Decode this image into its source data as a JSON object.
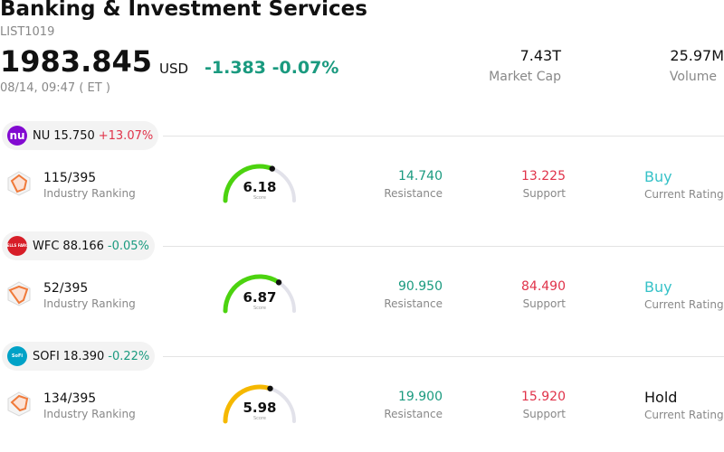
{
  "header": {
    "title": "Banking & Investment Services",
    "code": "LIST1019",
    "price": "1983.845",
    "currency": "USD",
    "change": "-1.383 -0.07%",
    "timestamp": "08/14, 09:47  ( ET )",
    "market_cap_value": "7.43T",
    "market_cap_label": "Market Cap",
    "volume_value": "25.97M",
    "volume_label": "Volume"
  },
  "stocks": [
    {
      "logo_text": "nu",
      "ticker": "NU",
      "price": "15.750",
      "change_pct": "+13.07%",
      "rank": "115/395",
      "rank_label": "Industry Ranking",
      "score": "6.18",
      "score_fraction": 0.618,
      "score_label": "Score",
      "resistance": "14.740",
      "resistance_label": "Resistance",
      "support": "13.225",
      "support_label": "Support",
      "rating": "Buy",
      "rating_label": "Current Rating"
    },
    {
      "logo_text": "WELLS FARGO",
      "ticker": "WFC",
      "price": "88.166",
      "change_pct": "-0.05%",
      "rank": "52/395",
      "rank_label": "Industry Ranking",
      "score": "6.87",
      "score_fraction": 0.687,
      "score_label": "Score",
      "resistance": "90.950",
      "resistance_label": "Resistance",
      "support": "84.490",
      "support_label": "Support",
      "rating": "Buy",
      "rating_label": "Current Rating"
    },
    {
      "logo_text": "SoFi",
      "ticker": "SOFI",
      "price": "18.390",
      "change_pct": "-0.22%",
      "rank": "134/395",
      "rank_label": "Industry Ranking",
      "score": "5.98",
      "score_fraction": 0.598,
      "score_label": "Score",
      "resistance": "19.900",
      "resistance_label": "Resistance",
      "support": "15.920",
      "support_label": "Support",
      "rating": "Hold",
      "rating_label": "Current Rating"
    }
  ],
  "colors": {
    "up": "#e0334a",
    "down": "#1a9a7f",
    "buy": "#36c2c8",
    "gauge_green": "#4cd30f",
    "gauge_yellow": "#f5b800",
    "gauge_track": "#e2e2ea"
  }
}
